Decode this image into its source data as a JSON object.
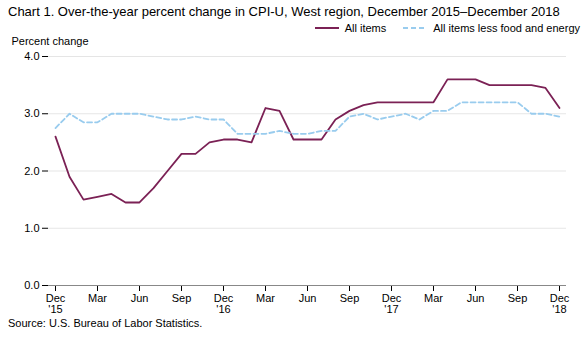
{
  "chart_data": {
    "type": "line",
    "title": "Chart 1. Over-the-year percent change in CPI-U, West region, December 2015–December 2018",
    "ylabel": "Percent change",
    "caption": "Source: U.S. Bureau of Labor Statistics.",
    "categories": [
      "Dec\n'15",
      null,
      null,
      "Mar",
      null,
      null,
      "Jun",
      null,
      null,
      "Sep",
      null,
      null,
      "Dec\n'16",
      null,
      null,
      "Mar",
      null,
      null,
      "Jun",
      null,
      null,
      "Sep",
      null,
      null,
      "Dec\n'17",
      null,
      null,
      "Mar",
      null,
      null,
      "Jun",
      null,
      null,
      "Sep",
      null,
      null,
      "Dec\n'18"
    ],
    "series": [
      {
        "name": "All items",
        "color": "#7b2155",
        "line_style": "solid",
        "values": [
          2.6,
          1.9,
          1.5,
          1.55,
          1.6,
          1.45,
          1.45,
          1.7,
          2.0,
          2.3,
          2.3,
          2.5,
          2.55,
          2.55,
          2.5,
          3.1,
          3.05,
          2.55,
          2.55,
          2.55,
          2.9,
          3.05,
          3.15,
          3.2,
          3.2,
          3.2,
          3.2,
          3.2,
          3.6,
          3.6,
          3.6,
          3.5,
          3.5,
          3.5,
          3.5,
          3.45,
          3.1
        ]
      },
      {
        "name": "All items less food and energy",
        "color": "#99ccee",
        "line_style": "dashed",
        "values": [
          2.75,
          3.0,
          2.85,
          2.85,
          3.0,
          3.0,
          3.0,
          2.95,
          2.9,
          2.9,
          2.95,
          2.9,
          2.9,
          2.65,
          2.65,
          2.65,
          2.7,
          2.65,
          2.65,
          2.7,
          2.7,
          2.95,
          3.0,
          2.9,
          2.95,
          3.0,
          2.9,
          3.05,
          3.05,
          3.2,
          3.2,
          3.2,
          3.2,
          3.2,
          3.0,
          3.0,
          2.95
        ]
      }
    ],
    "ylim": [
      0.0,
      4.0
    ],
    "yticks": [
      {
        "value": 0.0,
        "label": "0.0"
      },
      {
        "value": 1.0,
        "label": "1.0"
      },
      {
        "value": 2.0,
        "label": "2.0"
      },
      {
        "value": 3.0,
        "label": "3.0"
      },
      {
        "value": 4.0,
        "label": "4.0"
      }
    ],
    "grid": true,
    "legend": "top"
  }
}
